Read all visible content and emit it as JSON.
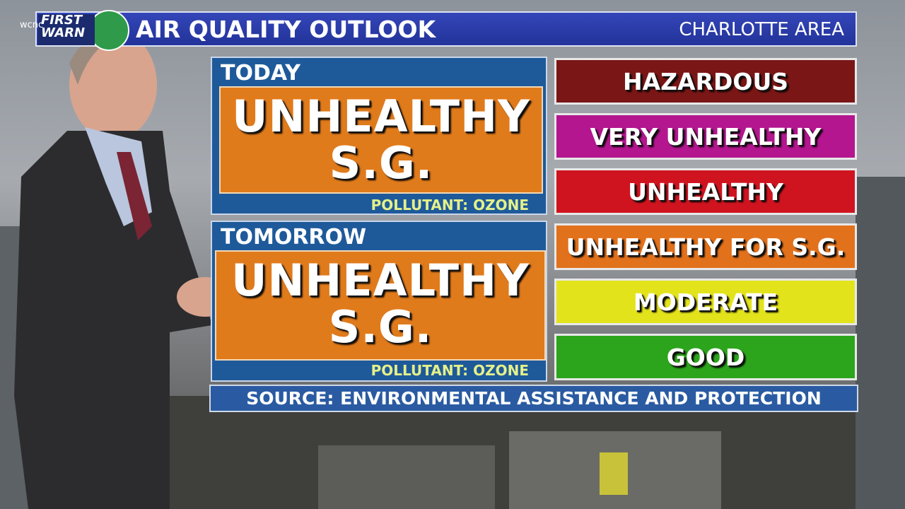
{
  "header": {
    "logo": "FIRST WARN",
    "station": "wcnc",
    "title": "AIR QUALITY OUTLOOK",
    "area": "CHARLOTTE AREA"
  },
  "forecasts": [
    {
      "label": "TODAY",
      "level": [
        "UNHEALTHY",
        "S.G."
      ],
      "pollutant": "POLLUTANT: OZONE"
    },
    {
      "label": "TOMORROW",
      "level": [
        "UNHEALTHY",
        "S.G."
      ],
      "pollutant": "POLLUTANT: OZONE"
    }
  ],
  "scale": [
    {
      "name": "HAZARDOUS",
      "color": "#7a1616"
    },
    {
      "name": "VERY UNHEALTHY",
      "color": "#b3168e"
    },
    {
      "name": "UNHEALTHY",
      "color": "#cf1420"
    },
    {
      "name": "UNHEALTHY FOR S.G.",
      "color": "#e2711c"
    },
    {
      "name": "MODERATE",
      "color": "#e3e31c"
    },
    {
      "name": "GOOD",
      "color": "#2ca41c"
    }
  ],
  "source": "SOURCE: ENVIRONMENTAL ASSISTANCE AND PROTECTION"
}
